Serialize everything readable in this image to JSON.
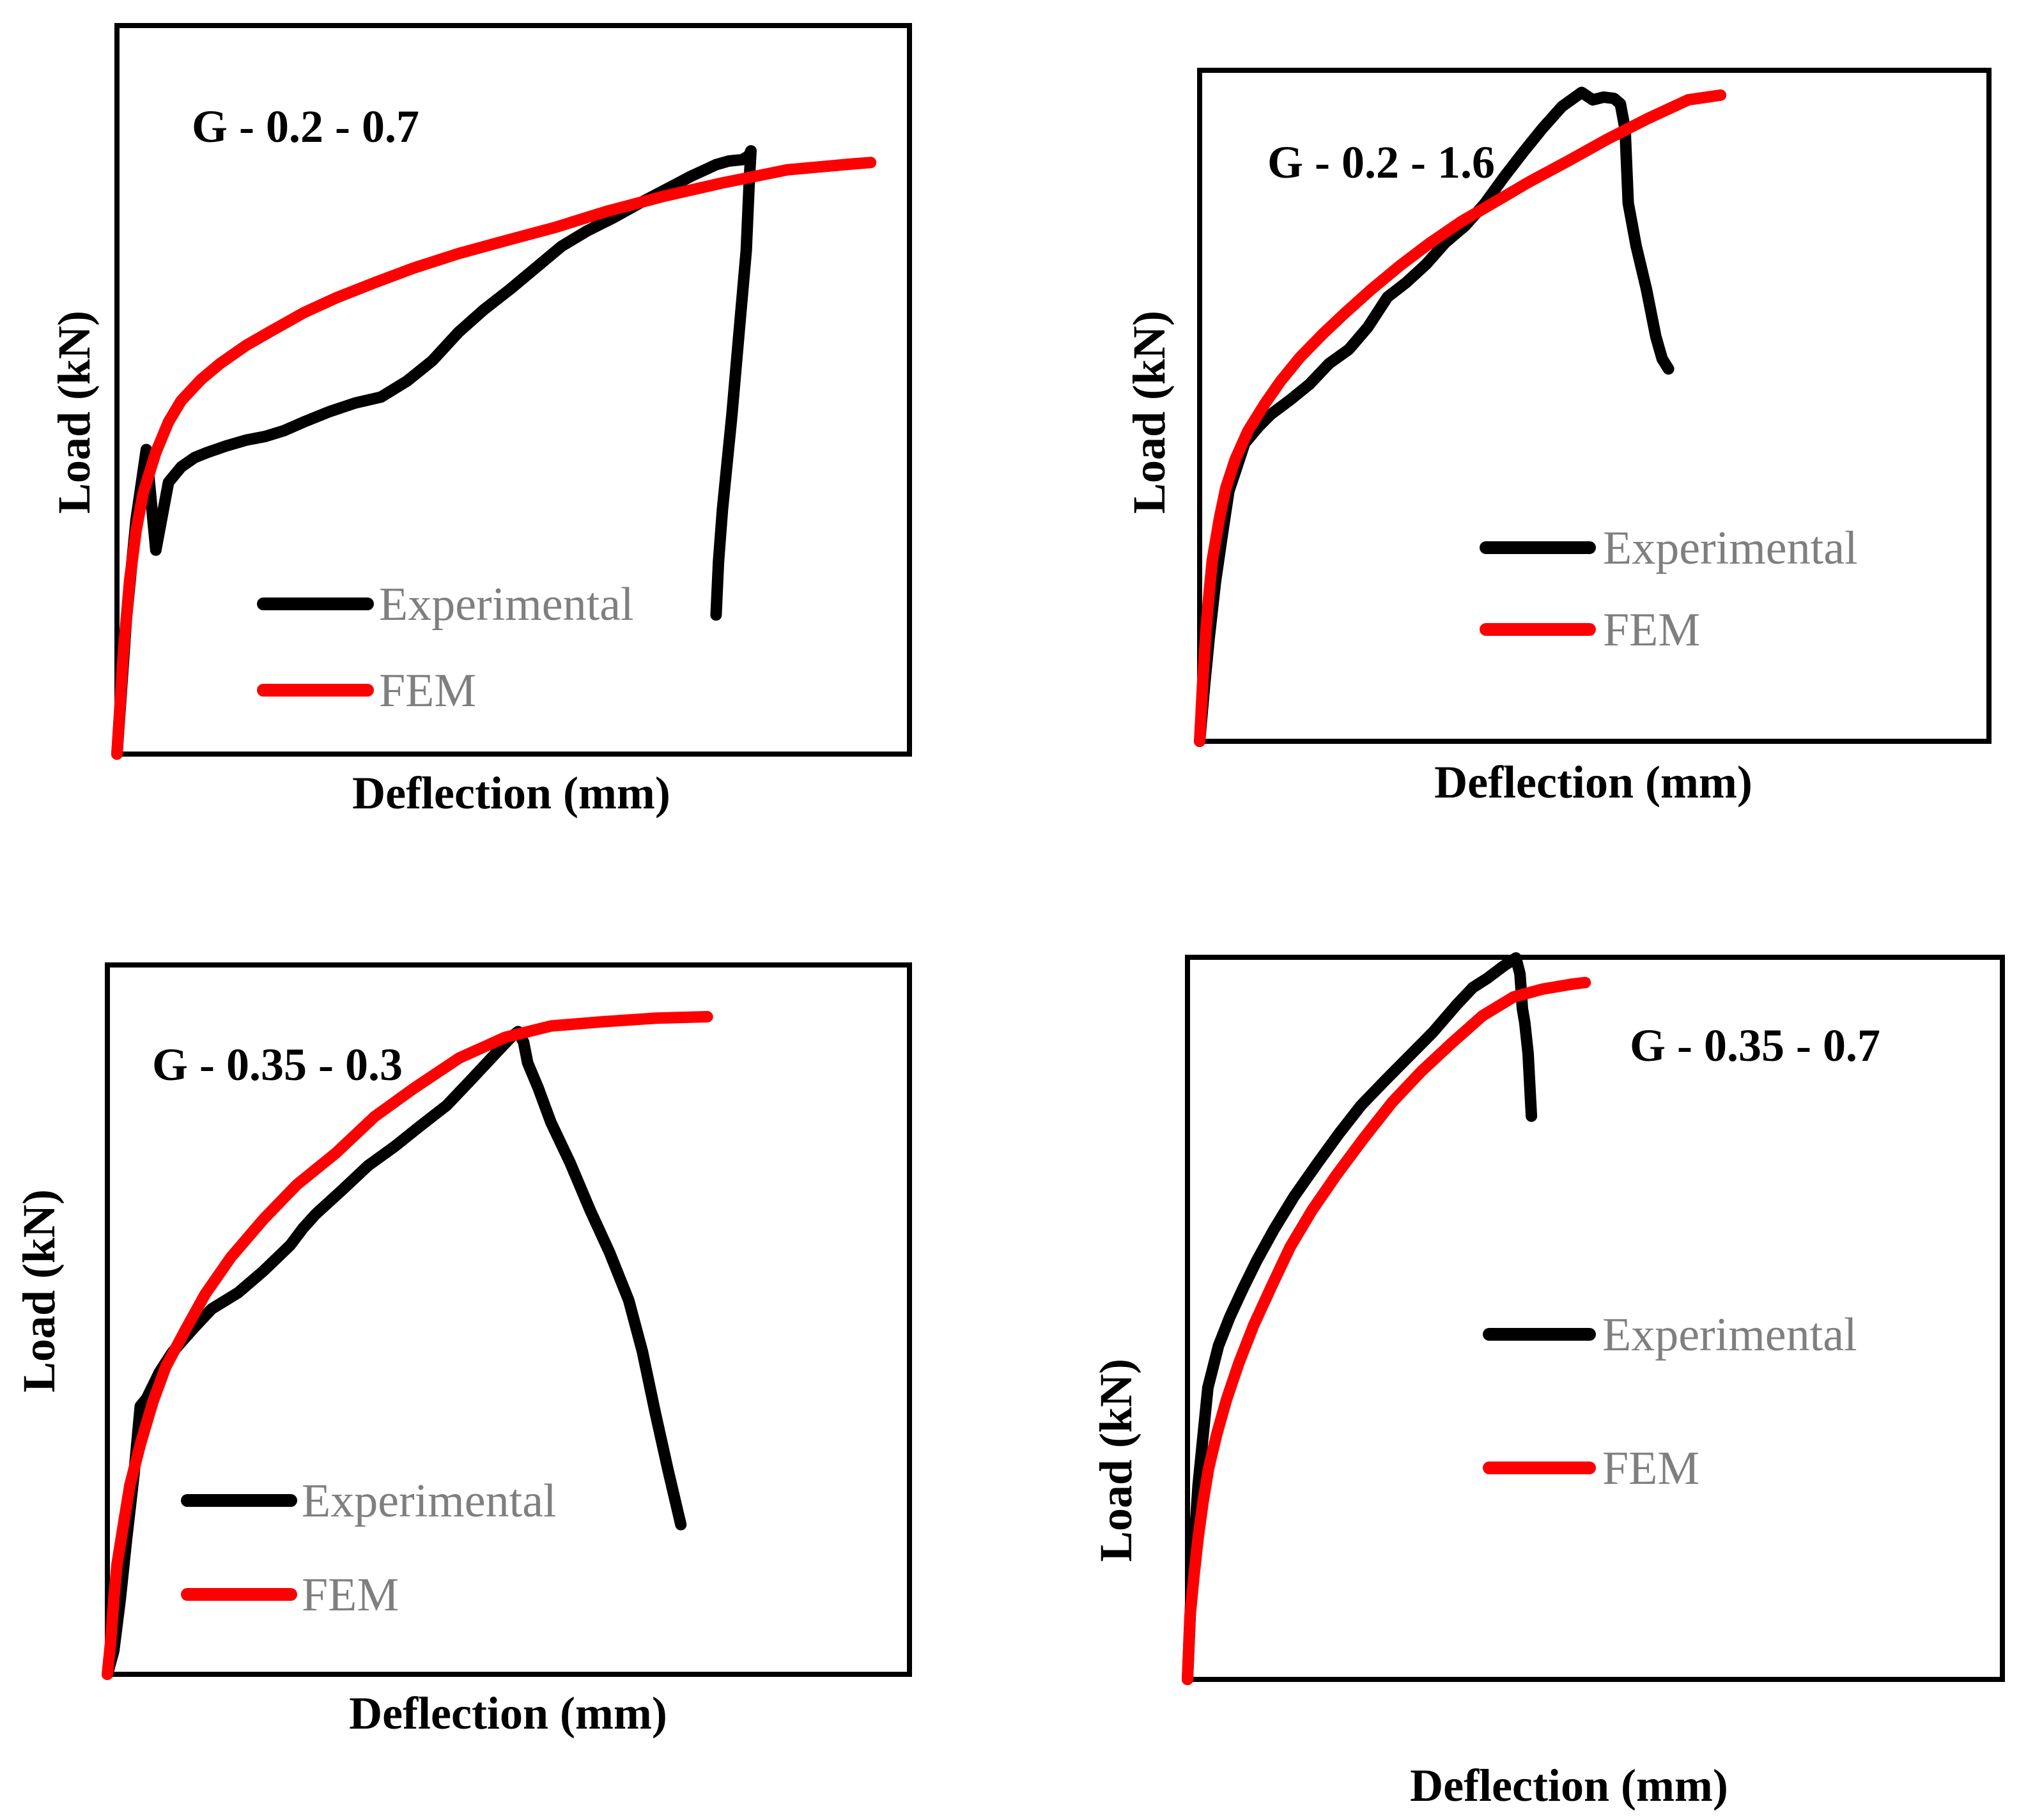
{
  "colors": {
    "experimental": "#000000",
    "fem": "#ff0000",
    "legend_text": "#7f7f7f",
    "frame": "#000000"
  },
  "chart_data": [
    {
      "type": "line",
      "title": "G - 0.2 - 0.7",
      "xlabel": "Deflection (mm)",
      "ylabel": "Load (kN)",
      "xlim": [
        0,
        100
      ],
      "ylim": [
        0,
        100
      ],
      "grid": false,
      "legend": {
        "position": "lower-left",
        "entries": [
          "Experimental",
          "FEM"
        ]
      },
      "series": [
        {
          "name": "Experimental",
          "x": [
            0,
            1.2,
            2.4,
            3.7,
            4.9,
            6.5,
            8.1,
            9.8,
            11.4,
            13.8,
            16.3,
            18.7,
            21.1,
            23.6,
            26.8,
            30.1,
            33.3,
            36.6,
            39.8,
            43.1,
            46.3,
            49.6,
            52.8,
            56.1,
            59.3,
            62.6,
            65.9,
            69.1,
            72.4,
            75.6,
            77.2,
            78.9,
            79.7,
            80.0,
            79.8,
            79.4,
            78.5,
            77.6,
            76.4,
            75.9,
            75.6
          ],
          "y": [
            0,
            18.7,
            32.1,
            41.8,
            28.0,
            37.3,
            39.4,
            40.7,
            41.4,
            42.3,
            43.1,
            43.6,
            44.4,
            45.6,
            47.0,
            48.2,
            49.0,
            51.2,
            54.0,
            57.9,
            61.0,
            63.8,
            66.7,
            69.7,
            71.8,
            73.6,
            75.6,
            77.4,
            79.3,
            80.9,
            81.4,
            81.6,
            82.1,
            82.8,
            79.0,
            69.1,
            57.9,
            46.6,
            33.6,
            26.4,
            19.1
          ]
        },
        {
          "name": "FEM",
          "x": [
            0,
            0.8,
            1.6,
            2.4,
            3.3,
            4.9,
            6.5,
            8.1,
            10.6,
            13.0,
            16.3,
            19.5,
            23.6,
            27.6,
            32.5,
            37.4,
            43.1,
            48.8,
            55.3,
            61.8,
            69.1,
            76.4,
            84.6,
            92.7,
            95.1
          ],
          "y": [
            0,
            13.8,
            23.8,
            30.6,
            35.8,
            41.4,
            45.6,
            48.5,
            51.4,
            53.6,
            56.1,
            58.1,
            60.6,
            62.6,
            64.7,
            66.7,
            68.7,
            70.4,
            72.3,
            74.5,
            76.6,
            78.4,
            80.2,
            81.0,
            81.2
          ]
        }
      ]
    },
    {
      "type": "line",
      "title": "G - 0.2 - 1.6",
      "xlabel": "Deflection (mm)",
      "ylabel": "Load (kN)",
      "xlim": [
        0,
        100
      ],
      "ylim": [
        0,
        100
      ],
      "grid": false,
      "legend": {
        "position": "center-right",
        "entries": [
          "Experimental",
          "FEM"
        ]
      },
      "series": [
        {
          "name": "Experimental",
          "x": [
            0,
            0.6,
            1.2,
            2.0,
            2.9,
            3.7,
            4.5,
            5.7,
            7.4,
            9.0,
            11.5,
            13.9,
            16.4,
            18.9,
            21.3,
            23.8,
            26.2,
            28.7,
            31.1,
            33.6,
            36.1,
            38.5,
            41.0,
            43.4,
            45.9,
            48.4,
            49.8,
            51.2,
            52.5,
            53.3,
            53.9,
            54.3,
            55.3,
            56.6,
            57.8,
            58.6,
            59.4
          ],
          "y": [
            0,
            8.0,
            15.3,
            23.7,
            31.0,
            37.3,
            40.1,
            44.4,
            46.8,
            48.7,
            50.9,
            53.2,
            56.3,
            58.4,
            61.7,
            66.2,
            68.4,
            71.1,
            74.3,
            76.8,
            80.1,
            84.0,
            87.8,
            91.3,
            94.6,
            96.7,
            95.6,
            96.0,
            95.8,
            95.0,
            91.2,
            80.2,
            73.8,
            67.4,
            60.3,
            57.0,
            55.5
          ]
        },
        {
          "name": "FEM",
          "x": [
            0,
            0.4,
            0.8,
            1.2,
            1.6,
            2.5,
            3.3,
            4.5,
            6.1,
            8.2,
            10.2,
            12.7,
            15.6,
            18.4,
            21.7,
            25.4,
            29.1,
            33.2,
            37.3,
            41.8,
            46.7,
            51.6,
            56.6,
            61.9,
            66.0
          ],
          "y": [
            0,
            9.0,
            16.6,
            22.1,
            27.0,
            33.2,
            37.7,
            42.0,
            46.2,
            50.2,
            53.6,
            57.2,
            60.7,
            63.8,
            67.3,
            70.9,
            74.2,
            77.5,
            80.3,
            83.4,
            86.5,
            89.7,
            92.7,
            95.6,
            96.3
          ]
        }
      ]
    },
    {
      "type": "line",
      "title": "G - 0.35 - 0.3",
      "xlabel": "Deflection (mm)",
      "ylabel": "Load (kN)",
      "xlim": [
        0,
        100
      ],
      "ylim": [
        0,
        100
      ],
      "grid": false,
      "legend": {
        "position": "lower-left",
        "entries": [
          "Experimental",
          "FEM"
        ]
      },
      "series": [
        {
          "name": "Experimental",
          "x": [
            0,
            0.8,
            1.6,
            2.4,
            3.3,
            4.1,
            4.9,
            6.5,
            8.1,
            10.6,
            13.0,
            16.3,
            19.5,
            22.8,
            24.4,
            26.0,
            29.3,
            32.5,
            35.8,
            39.0,
            42.3,
            45.5,
            48.8,
            50.4,
            51.2,
            51.9,
            52.4,
            53.7,
            55.3,
            57.7,
            60.2,
            62.6,
            65.0,
            66.7,
            68.3,
            69.9,
            71.5
          ],
          "y": [
            0,
            3.3,
            10.5,
            19.1,
            28.0,
            37.8,
            38.9,
            42.6,
            45.4,
            48.6,
            51.5,
            53.8,
            56.9,
            60.5,
            62.9,
            64.9,
            68.3,
            71.7,
            74.4,
            77.3,
            80.2,
            84.0,
            88.0,
            89.9,
            90.6,
            89.1,
            86.2,
            82.7,
            77.8,
            72.1,
            65.4,
            59.5,
            52.7,
            45.5,
            36.9,
            28.8,
            21.1
          ]
        },
        {
          "name": "FEM",
          "x": [
            0,
            0.4,
            0.8,
            1.2,
            2.0,
            2.8,
            4.1,
            5.7,
            7.3,
            9.8,
            12.2,
            15.4,
            19.5,
            23.6,
            28.5,
            33.3,
            38.2,
            43.9,
            49.6,
            55.3,
            61.8,
            68.3,
            74.8
          ],
          "y": [
            0,
            4.5,
            10.5,
            15.5,
            21.1,
            26.6,
            32.4,
            38.5,
            43.4,
            48.7,
            53.6,
            58.8,
            64.2,
            69.0,
            73.5,
            78.6,
            82.6,
            86.9,
            89.8,
            91.4,
            92.0,
            92.5,
            92.7
          ]
        }
      ]
    },
    {
      "type": "line",
      "title": "G - 0.35 - 0.7",
      "xlabel": "Deflection (mm)",
      "ylabel": "Load (kN)",
      "xlim": [
        0,
        100
      ],
      "ylim": [
        0,
        100
      ],
      "grid": false,
      "legend": {
        "position": "center-right",
        "entries": [
          "Experimental",
          "FEM"
        ]
      },
      "series": [
        {
          "name": "Experimental",
          "x": [
            0,
            0.5,
            1.3,
            2.5,
            3.8,
            5.2,
            6.8,
            8.5,
            10.6,
            13.1,
            15.9,
            18.6,
            21.3,
            24.3,
            27.2,
            30.1,
            33.0,
            35.0,
            36.8,
            38.8,
            40.3,
            40.8,
            41.1,
            41.4,
            41.8,
            42.2
          ],
          "y": [
            0,
            13.5,
            26.9,
            40.4,
            46.2,
            50.2,
            54.1,
            58.0,
            62.3,
            66.9,
            71.4,
            75.6,
            79.5,
            83.0,
            86.3,
            89.6,
            93.4,
            95.8,
            97.1,
            98.8,
            99.9,
            97.7,
            92.9,
            90.9,
            86.7,
            78.0
          ]
        },
        {
          "name": "FEM",
          "x": [
            0,
            0.3,
            0.8,
            1.3,
            1.9,
            2.6,
            3.6,
            4.8,
            6.3,
            8.1,
            10.3,
            12.6,
            15.3,
            18.3,
            21.6,
            25.1,
            28.7,
            32.4,
            36.2,
            40.0,
            43.6,
            47.3,
            48.8
          ],
          "y": [
            0,
            8.6,
            14.4,
            19.6,
            24.5,
            29.3,
            34.0,
            38.8,
            43.8,
            49.0,
            54.4,
            59.9,
            65.0,
            69.9,
            74.9,
            79.9,
            84.2,
            88.1,
            91.9,
            94.5,
            95.6,
            96.3,
            96.5
          ]
        }
      ]
    }
  ]
}
